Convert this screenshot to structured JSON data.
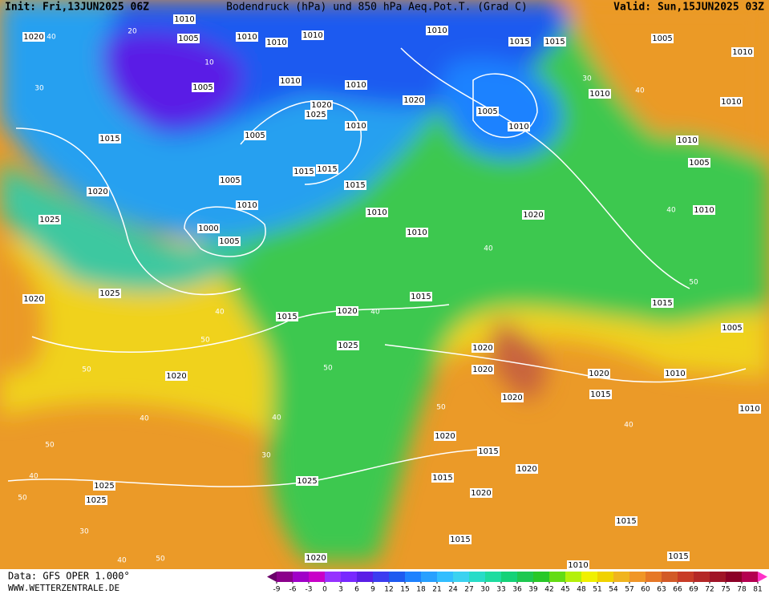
{
  "header": {
    "init": "Init: Fri,13JUN2025 06Z",
    "title": "Bodendruck (hPa) und 850 hPa Aeq.Pot.T. (Grad C)",
    "valid": "Valid: Sun,15JUN2025 03Z"
  },
  "footer": {
    "data": "Data: GFS OPER 1.000°",
    "site": "WWW.WETTERZENTRALE.DE"
  },
  "legend": {
    "ticks": [
      -9,
      -6,
      -3,
      0,
      3,
      6,
      9,
      12,
      15,
      18,
      21,
      24,
      27,
      30,
      33,
      36,
      39,
      42,
      45,
      48,
      51,
      54,
      57,
      60,
      63,
      66,
      69,
      72,
      75,
      78,
      81
    ],
    "colors": [
      "#8b008b",
      "#a000c8",
      "#c800c8",
      "#9632ff",
      "#7828ff",
      "#5a1ee6",
      "#3c3cf0",
      "#1e5af0",
      "#1e82ff",
      "#28a0ff",
      "#32beff",
      "#3cd2f0",
      "#28dcc8",
      "#1edca0",
      "#14d278",
      "#1ec850",
      "#28c828",
      "#64dc14",
      "#b4f00a",
      "#f0f000",
      "#f0d200",
      "#f0b41e",
      "#f09628",
      "#e67828",
      "#d25a28",
      "#c83c28",
      "#b42828",
      "#a01428",
      "#8c0028",
      "#b40050"
    ],
    "low_color": "#6a006a",
    "high_color": "#ff32c8"
  },
  "map_labels": [
    "1010",
    "1005",
    "1010",
    "1010",
    "1010",
    "1010",
    "1015",
    "1015",
    "1005",
    "1010",
    "1020",
    "1005",
    "1010",
    "1010",
    "1020",
    "1025",
    "1010",
    "1020",
    "1005",
    "1010",
    "1010",
    "1010",
    "1015",
    "1005",
    "1005",
    "1010",
    "1015",
    "1015",
    "1015",
    "1020",
    "1025",
    "1000",
    "1005",
    "1010",
    "1010",
    "1020",
    "1010",
    "1010",
    "1005",
    "1020",
    "1025",
    "1015",
    "1020",
    "1015",
    "1015",
    "1005",
    "1025",
    "1020",
    "1020",
    "1020",
    "1010",
    "1015",
    "1020",
    "1020",
    "1010",
    "1020",
    "1015",
    "1015",
    "1020",
    "1020",
    "1025",
    "1025",
    "1025",
    "1015",
    "1015",
    "1015",
    "1020",
    "1010",
    "20",
    "10",
    "30",
    "40",
    "30",
    "40",
    "40",
    "50",
    "50",
    "40",
    "50",
    "50",
    "40",
    "50",
    "40",
    "50",
    "30",
    "40",
    "50",
    "40",
    "30",
    "40",
    "40",
    "50",
    "40"
  ]
}
